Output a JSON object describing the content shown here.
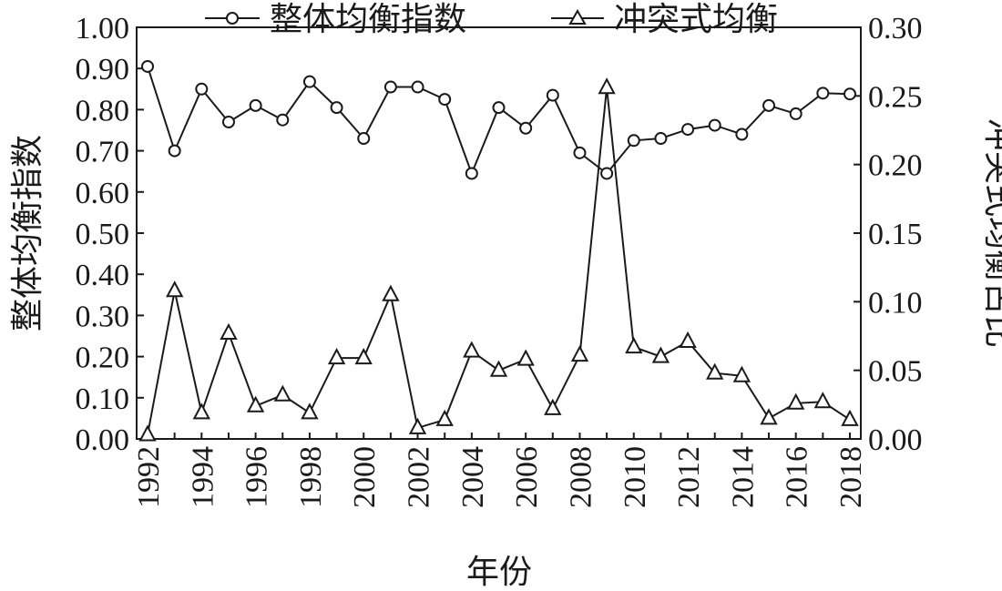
{
  "chart_data": {
    "type": "line",
    "xlabel": "年份",
    "ylabel_left": "整体均衡指数",
    "ylabel_right": "冲突式均衡占比",
    "ylim_left": [
      0,
      1.0
    ],
    "ylim_right": [
      0,
      0.3
    ],
    "yticks_left": [
      "0.00",
      "0.10",
      "0.20",
      "0.30",
      "0.40",
      "0.50",
      "0.60",
      "0.70",
      "0.80",
      "0.90",
      "1.00"
    ],
    "yticks_right": [
      "0.00",
      "0.05",
      "0.10",
      "0.15",
      "0.20",
      "0.25",
      "0.30"
    ],
    "x": [
      1992,
      1993,
      1994,
      1995,
      1996,
      1997,
      1998,
      1999,
      2000,
      2001,
      2002,
      2003,
      2004,
      2005,
      2006,
      2007,
      2008,
      2009,
      2010,
      2011,
      2012,
      2013,
      2014,
      2015,
      2016,
      2017,
      2018
    ],
    "xticks": [
      "1992",
      "1994",
      "1996",
      "1998",
      "2000",
      "2002",
      "2004",
      "2006",
      "2008",
      "2010",
      "2012",
      "2014",
      "2016",
      "2018"
    ],
    "legend_position": "top",
    "series": [
      {
        "name": "整体均衡指数",
        "axis": "left",
        "marker": "circle",
        "values": [
          0.905,
          0.7,
          0.85,
          0.77,
          0.81,
          0.775,
          0.868,
          0.805,
          0.73,
          0.855,
          0.855,
          0.825,
          0.645,
          0.805,
          0.755,
          0.835,
          0.695,
          0.645,
          0.725,
          0.73,
          0.752,
          0.762,
          0.74,
          0.81,
          0.79,
          0.84,
          0.838
        ]
      },
      {
        "name": "冲突式均衡",
        "axis": "right",
        "marker": "triangle",
        "values": [
          0.003,
          0.108,
          0.019,
          0.077,
          0.024,
          0.032,
          0.019,
          0.059,
          0.059,
          0.105,
          0.008,
          0.014,
          0.064,
          0.05,
          0.058,
          0.022,
          0.061,
          0.256,
          0.067,
          0.06,
          0.071,
          0.048,
          0.046,
          0.015,
          0.026,
          0.027,
          0.014
        ]
      }
    ]
  }
}
